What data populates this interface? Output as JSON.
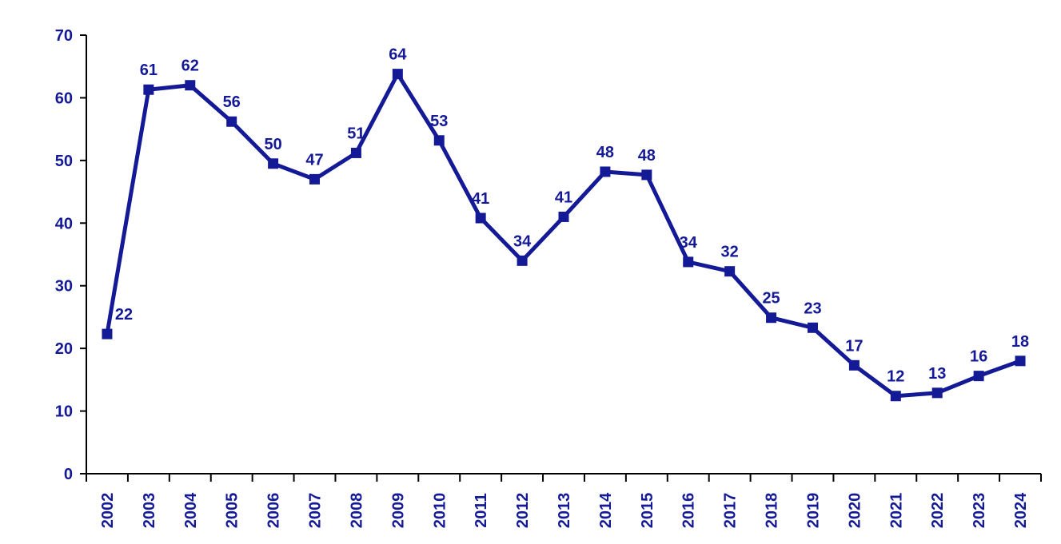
{
  "chart_data": {
    "type": "line",
    "title": "",
    "xlabel": "",
    "ylabel": "",
    "categories": [
      "2002",
      "2003",
      "2004",
      "2005",
      "2006",
      "2007",
      "2008",
      "2009",
      "2010",
      "2011",
      "2012",
      "2013",
      "2014",
      "2015",
      "2016",
      "2017",
      "2018",
      "2019",
      "2020",
      "2021",
      "2022",
      "2023",
      "2024"
    ],
    "values": [
      22,
      61,
      62,
      56,
      50,
      47,
      51,
      64,
      53,
      41,
      34,
      41,
      48,
      48,
      34,
      32,
      25,
      23,
      17,
      12,
      13,
      16,
      18
    ],
    "plot_values": [
      22.3,
      61.3,
      62.0,
      56.2,
      49.5,
      47.0,
      51.2,
      63.8,
      53.2,
      40.8,
      34.0,
      41.0,
      48.2,
      47.7,
      33.8,
      32.3,
      24.9,
      23.3,
      17.3,
      12.4,
      12.9,
      15.6,
      18.0
    ],
    "label_dx": [
      21,
      0,
      0,
      0,
      0,
      0,
      0,
      0,
      0,
      0,
      0,
      0,
      0,
      0,
      0,
      0,
      0,
      0,
      0,
      0,
      0,
      0,
      0
    ],
    "y_ticks": [
      "0",
      "10",
      "20",
      "30",
      "40",
      "50",
      "60",
      "70"
    ],
    "ylim": [
      0,
      70
    ],
    "ytick_step": 10,
    "grid": false,
    "legend": false,
    "marker": "square",
    "series_color": "#141996",
    "label_color": "#141996",
    "axis_color": "#000000",
    "background": "#ffffff"
  }
}
